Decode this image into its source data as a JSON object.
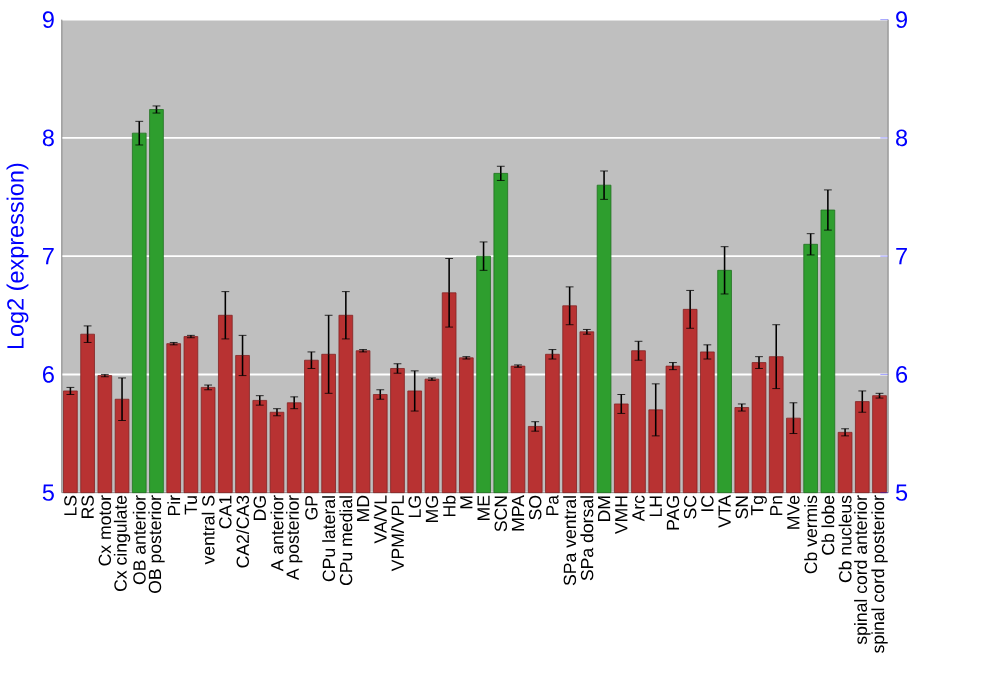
{
  "chart_data": {
    "type": "bar",
    "ylabel": "Log2 (expression)",
    "categories": [
      "LS",
      "RS",
      "Cx motor",
      "Cx cingulate",
      "OB anterior",
      "OB posterior",
      "Pir",
      "Tu",
      "ventral S",
      "CA1",
      "CA2/CA3",
      "DG",
      "A anterior",
      "A posterior",
      "GP",
      "CPu lateral",
      "CPu medial",
      "MD",
      "VA/VL",
      "VPM/VPL",
      "LG",
      "MG",
      "Hb",
      "M",
      "ME",
      "SCN",
      "MPA",
      "SO",
      "Pa",
      "SPa ventral",
      "SPa dorsal",
      "DM",
      "VMH",
      "Arc",
      "LH",
      "PAG",
      "SC",
      "IC",
      "VTA",
      "SN",
      "Tg",
      "Pn",
      "MVe",
      "Cb vermis",
      "Cb lobe",
      "Cb nucleus",
      "spinal cord anterior",
      "spinal cord posterior"
    ],
    "values": [
      5.86,
      6.34,
      5.99,
      5.79,
      8.04,
      8.24,
      6.26,
      6.32,
      5.89,
      6.5,
      6.16,
      5.78,
      5.68,
      5.76,
      6.12,
      6.17,
      6.5,
      6.2,
      5.83,
      6.05,
      5.86,
      5.96,
      6.69,
      6.14,
      7.0,
      7.7,
      6.07,
      5.56,
      6.17,
      6.58,
      6.36,
      7.6,
      5.75,
      6.2,
      5.7,
      6.07,
      6.55,
      6.19,
      6.88,
      5.72,
      6.1,
      6.15,
      5.63,
      7.1,
      7.39,
      5.51,
      5.77,
      5.82
    ],
    "errors": [
      0.03,
      0.07,
      0.01,
      0.18,
      0.1,
      0.03,
      0.01,
      0.01,
      0.02,
      0.2,
      0.17,
      0.04,
      0.03,
      0.05,
      0.07,
      0.33,
      0.2,
      0.01,
      0.04,
      0.04,
      0.17,
      0.01,
      0.29,
      0.01,
      0.12,
      0.06,
      0.01,
      0.04,
      0.04,
      0.16,
      0.02,
      0.12,
      0.08,
      0.08,
      0.22,
      0.03,
      0.16,
      0.06,
      0.2,
      0.03,
      0.05,
      0.27,
      0.13,
      0.09,
      0.17,
      0.03,
      0.09,
      0.02
    ],
    "colors": [
      "#b83232",
      "#b83232",
      "#b83232",
      "#b83232",
      "#2e9e2e",
      "#2e9e2e",
      "#b83232",
      "#b83232",
      "#b83232",
      "#b83232",
      "#b83232",
      "#b83232",
      "#b83232",
      "#b83232",
      "#b83232",
      "#b83232",
      "#b83232",
      "#b83232",
      "#b83232",
      "#b83232",
      "#b83232",
      "#b83232",
      "#b83232",
      "#b83232",
      "#2e9e2e",
      "#2e9e2e",
      "#b83232",
      "#b83232",
      "#b83232",
      "#b83232",
      "#b83232",
      "#2e9e2e",
      "#b83232",
      "#b83232",
      "#b83232",
      "#b83232",
      "#b83232",
      "#b83232",
      "#2e9e2e",
      "#b83232",
      "#b83232",
      "#b83232",
      "#b83232",
      "#2e9e2e",
      "#2e9e2e",
      "#b83232",
      "#b83232",
      "#b83232"
    ],
    "ylim": [
      5,
      9
    ],
    "yticks": [
      5,
      6,
      7,
      8,
      9
    ],
    "y2lim": [
      5,
      9
    ],
    "y2ticks": [
      5,
      6,
      7,
      8,
      9
    ],
    "grid": "y"
  }
}
